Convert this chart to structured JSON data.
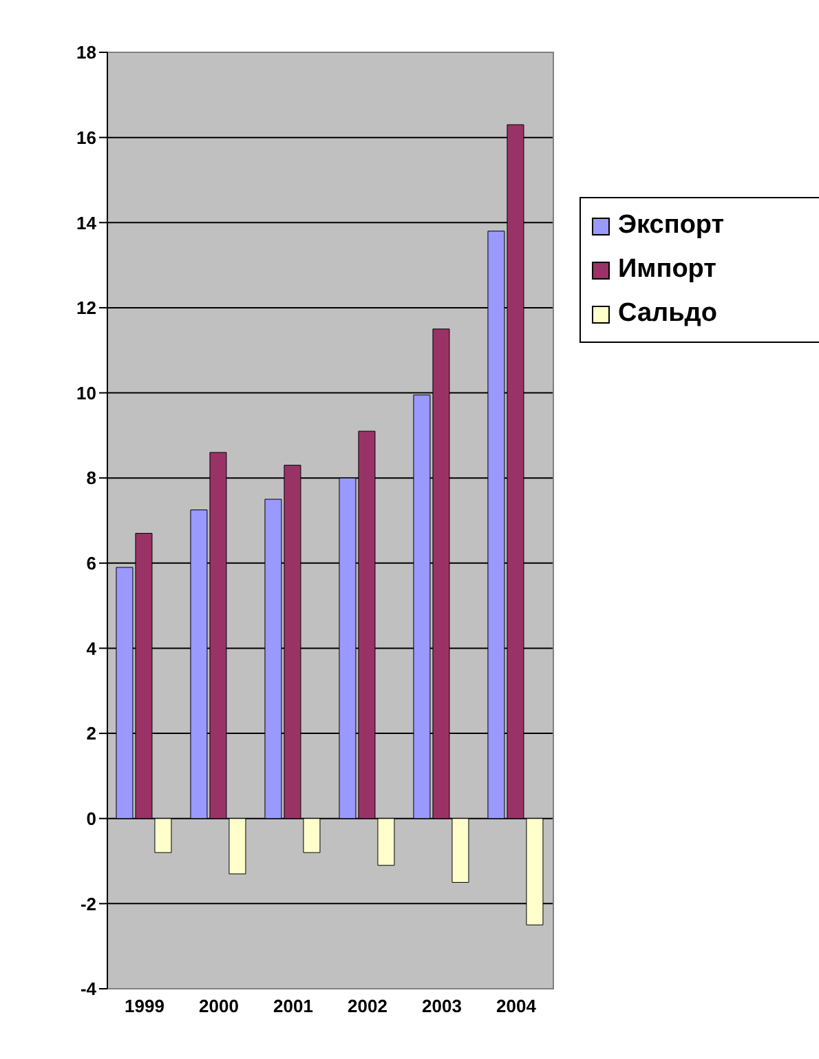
{
  "chart_data": {
    "type": "bar",
    "categories": [
      "1999",
      "2000",
      "2001",
      "2002",
      "2003",
      "2004"
    ],
    "series": [
      {
        "name": "Экспорт",
        "color": "#9999ff",
        "values": [
          5.9,
          7.25,
          7.5,
          8.0,
          9.95,
          13.8
        ]
      },
      {
        "name": "Импорт",
        "color": "#993366",
        "values": [
          6.7,
          8.6,
          8.3,
          9.1,
          11.5,
          16.3
        ]
      },
      {
        "name": "Сальдо",
        "color": "#ffffcc",
        "values": [
          -0.8,
          -1.3,
          -0.8,
          -1.1,
          -1.5,
          -2.5
        ]
      }
    ],
    "ylim": [
      -4,
      18
    ],
    "yticks": [
      -4,
      -2,
      0,
      2,
      4,
      6,
      8,
      10,
      12,
      14,
      16,
      18
    ],
    "grid": "y",
    "legend": "right"
  }
}
